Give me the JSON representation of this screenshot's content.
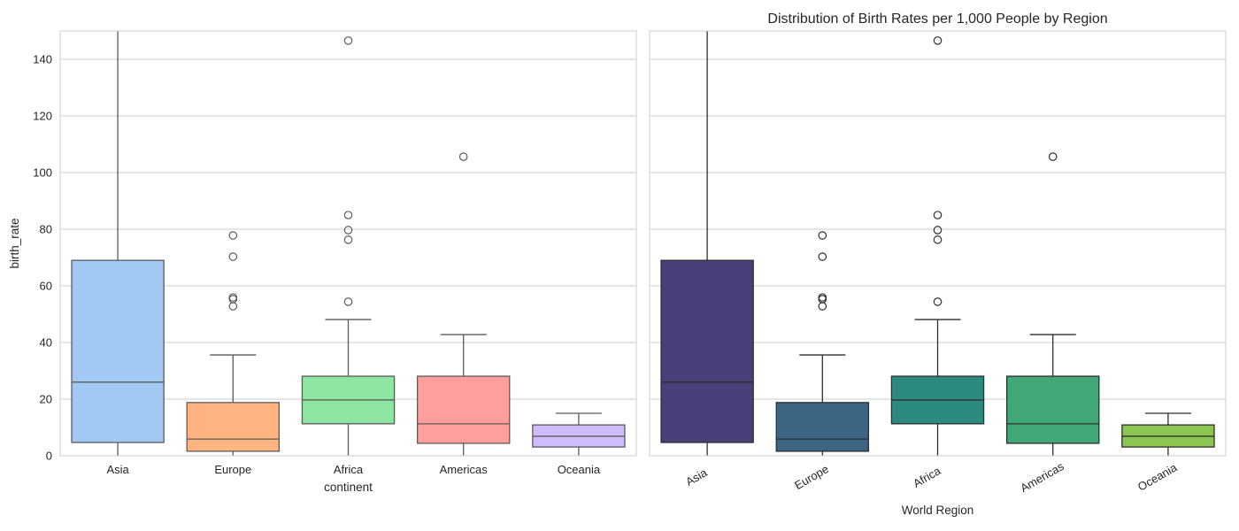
{
  "chart_data": [
    {
      "type": "box",
      "title": "",
      "xlabel": "continent",
      "ylabel": "birth_rate",
      "ylim": [
        0,
        150
      ],
      "yticks": [
        0,
        20,
        40,
        60,
        80,
        100,
        120,
        140
      ],
      "grid": true,
      "xtick_rotation": 0,
      "categories": [
        "Asia",
        "Europe",
        "Africa",
        "Americas",
        "Oceania"
      ],
      "colors": [
        "#a1c9f4",
        "#ffb482",
        "#8de5a1",
        "#ff9f9b",
        "#d0bbff"
      ],
      "edge_color": "#5b5b5b",
      "boxes": [
        {
          "whisker_low": 0,
          "q1": 4.7,
          "median": 26.0,
          "q3": 69.0,
          "whisker_high": 160,
          "outliers": []
        },
        {
          "whisker_low": 0,
          "q1": 1.6,
          "median": 5.9,
          "q3": 18.8,
          "whisker_high": 35.6,
          "outliers": [
            77.8,
            70.3,
            55.9,
            55.3,
            52.8
          ]
        },
        {
          "whisker_low": 0,
          "q1": 11.3,
          "median": 19.7,
          "q3": 28.1,
          "whisker_high": 48.1,
          "outliers": [
            146.6,
            85.0,
            79.7,
            76.3,
            54.4
          ]
        },
        {
          "whisker_low": 0,
          "q1": 4.4,
          "median": 11.3,
          "q3": 28.1,
          "whisker_high": 42.8,
          "outliers": [
            105.6
          ]
        },
        {
          "whisker_low": 0,
          "q1": 3.1,
          "median": 6.9,
          "q3": 10.9,
          "whisker_high": 15.0,
          "outliers": []
        }
      ]
    },
    {
      "type": "box",
      "title": "Distribution of Birth Rates per 1,000 People by Region",
      "xlabel": "World Region",
      "ylabel": "",
      "ylim": [
        0,
        150
      ],
      "yticks": [
        0,
        20,
        40,
        60,
        80,
        100,
        120,
        140
      ],
      "shared_y": true,
      "grid": true,
      "xtick_rotation": -30,
      "categories": [
        "Asia",
        "Europe",
        "Africa",
        "Americas",
        "Oceania"
      ],
      "colors": [
        "#4a3f78",
        "#3b6583",
        "#2c8a7f",
        "#43a878",
        "#8cc652"
      ],
      "edge_color": "#2e2e2e",
      "boxes": [
        {
          "whisker_low": 0,
          "q1": 4.7,
          "median": 26.0,
          "q3": 69.0,
          "whisker_high": 160,
          "outliers": []
        },
        {
          "whisker_low": 0,
          "q1": 1.6,
          "median": 5.9,
          "q3": 18.8,
          "whisker_high": 35.6,
          "outliers": [
            77.8,
            70.3,
            55.9,
            55.3,
            52.8
          ]
        },
        {
          "whisker_low": 0,
          "q1": 11.3,
          "median": 19.7,
          "q3": 28.1,
          "whisker_high": 48.1,
          "outliers": [
            146.6,
            85.0,
            79.7,
            76.3,
            54.4
          ]
        },
        {
          "whisker_low": 0,
          "q1": 4.4,
          "median": 11.3,
          "q3": 28.1,
          "whisker_high": 42.8,
          "outliers": [
            105.6
          ]
        },
        {
          "whisker_low": 0,
          "q1": 3.1,
          "median": 6.9,
          "q3": 10.9,
          "whisker_high": 15.0,
          "outliers": []
        }
      ]
    }
  ]
}
